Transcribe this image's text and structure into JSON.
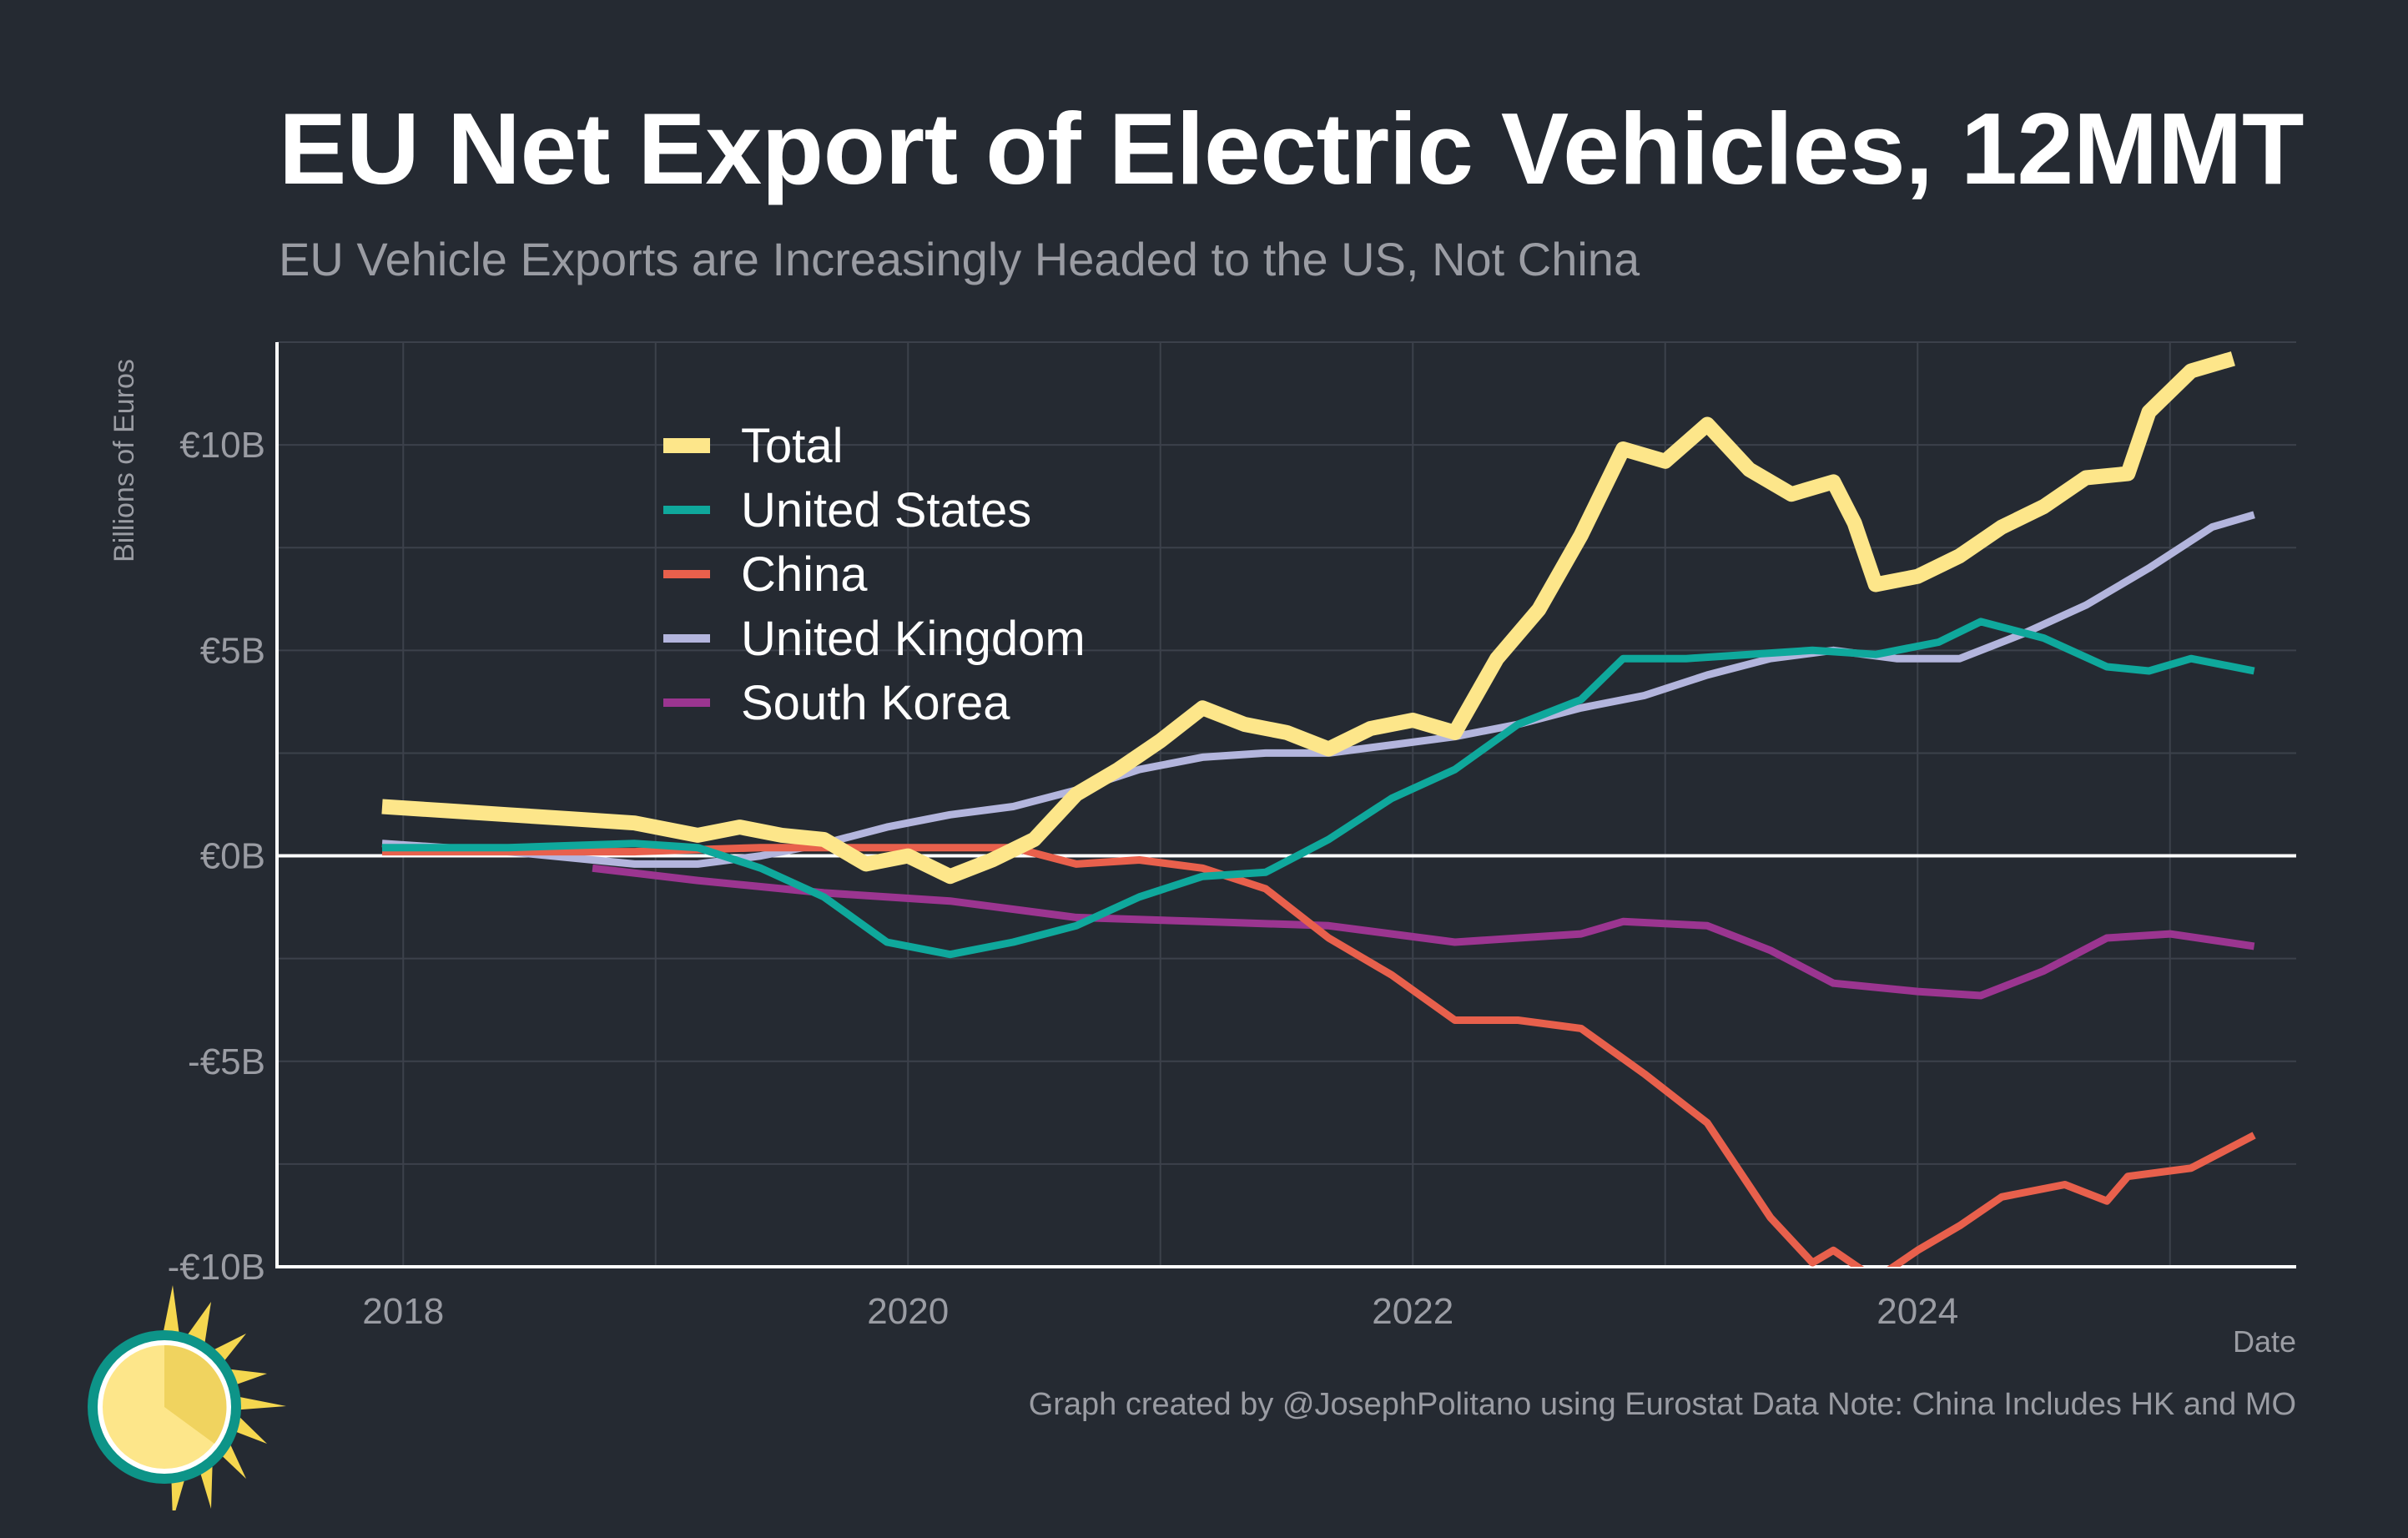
{
  "title": "EU Net Export of Electric Vehicles, 12MMT",
  "subtitle": "EU Vehicle Exports are Increasingly Headed to the US, Not China",
  "credit": "Graph created by @JosephPolitano using Eurostat Data  Note: China Includes HK and MO",
  "chart_data": {
    "type": "line",
    "xlabel": "Date",
    "ylabel": "Billions of Euros",
    "xlim": [
      "2017-07",
      "2025-07"
    ],
    "ylim": [
      -10,
      12.5
    ],
    "x_ticks": [
      "2018",
      "2020",
      "2022",
      "2024"
    ],
    "y_ticks": [
      {
        "value": 10,
        "label": "€10B"
      },
      {
        "value": 5,
        "label": "€5B"
      },
      {
        "value": 0,
        "label": "€0B"
      },
      {
        "value": -5,
        "label": "-€5B"
      },
      {
        "value": -10,
        "label": "-€10B"
      }
    ],
    "grid": true,
    "zero_line": true,
    "legend_position": "top-left",
    "series": [
      {
        "name": "Total",
        "color": "#fde68a",
        "width": 18,
        "points": [
          [
            "2017-12",
            1.2
          ],
          [
            "2018-03",
            1.1
          ],
          [
            "2018-06",
            1.0
          ],
          [
            "2018-09",
            0.9
          ],
          [
            "2018-12",
            0.8
          ],
          [
            "2019-03",
            0.5
          ],
          [
            "2019-05",
            0.7
          ],
          [
            "2019-07",
            0.5
          ],
          [
            "2019-09",
            0.4
          ],
          [
            "2019-11",
            -0.2
          ],
          [
            "2020-01",
            0.0
          ],
          [
            "2020-03",
            -0.5
          ],
          [
            "2020-05",
            -0.1
          ],
          [
            "2020-07",
            0.4
          ],
          [
            "2020-09",
            1.5
          ],
          [
            "2020-11",
            2.1
          ],
          [
            "2021-01",
            2.8
          ],
          [
            "2021-03",
            3.6
          ],
          [
            "2021-05",
            3.2
          ],
          [
            "2021-07",
            3.0
          ],
          [
            "2021-09",
            2.6
          ],
          [
            "2021-11",
            3.1
          ],
          [
            "2022-01",
            3.3
          ],
          [
            "2022-03",
            3.0
          ],
          [
            "2022-05",
            4.8
          ],
          [
            "2022-07",
            6.0
          ],
          [
            "2022-09",
            7.8
          ],
          [
            "2022-11",
            9.9
          ],
          [
            "2023-01",
            9.6
          ],
          [
            "2023-03",
            10.5
          ],
          [
            "2023-05",
            9.4
          ],
          [
            "2023-07",
            8.8
          ],
          [
            "2023-09",
            9.1
          ],
          [
            "2023-10",
            8.1
          ],
          [
            "2023-11",
            6.6
          ],
          [
            "2024-01",
            6.8
          ],
          [
            "2024-03",
            7.3
          ],
          [
            "2024-05",
            8.0
          ],
          [
            "2024-07",
            8.5
          ],
          [
            "2024-09",
            9.2
          ],
          [
            "2024-11",
            9.3
          ],
          [
            "2024-12",
            10.8
          ],
          [
            "2025-02",
            11.8
          ],
          [
            "2025-04",
            12.1
          ]
        ]
      },
      {
        "name": "United States",
        "color": "#0fa89c",
        "width": 9,
        "points": [
          [
            "2017-12",
            0.2
          ],
          [
            "2018-06",
            0.2
          ],
          [
            "2018-12",
            0.3
          ],
          [
            "2019-03",
            0.2
          ],
          [
            "2019-06",
            -0.3
          ],
          [
            "2019-09",
            -1.0
          ],
          [
            "2019-12",
            -2.1
          ],
          [
            "2020-03",
            -2.4
          ],
          [
            "2020-06",
            -2.1
          ],
          [
            "2020-09",
            -1.7
          ],
          [
            "2020-12",
            -1.0
          ],
          [
            "2021-03",
            -0.5
          ],
          [
            "2021-06",
            -0.4
          ],
          [
            "2021-09",
            0.4
          ],
          [
            "2021-12",
            1.4
          ],
          [
            "2022-03",
            2.1
          ],
          [
            "2022-06",
            3.2
          ],
          [
            "2022-09",
            3.8
          ],
          [
            "2022-11",
            4.8
          ],
          [
            "2023-02",
            4.8
          ],
          [
            "2023-05",
            4.9
          ],
          [
            "2023-08",
            5.0
          ],
          [
            "2023-11",
            4.9
          ],
          [
            "2024-02",
            5.2
          ],
          [
            "2024-04",
            5.7
          ],
          [
            "2024-07",
            5.3
          ],
          [
            "2024-10",
            4.6
          ],
          [
            "2024-12",
            4.5
          ],
          [
            "2025-02",
            4.8
          ],
          [
            "2025-05",
            4.5
          ]
        ]
      },
      {
        "name": "China",
        "color": "#e8604c",
        "width": 9,
        "points": [
          [
            "2017-12",
            0.1
          ],
          [
            "2018-06",
            0.1
          ],
          [
            "2018-12",
            0.1
          ],
          [
            "2019-06",
            0.2
          ],
          [
            "2019-12",
            0.2
          ],
          [
            "2020-06",
            0.2
          ],
          [
            "2020-09",
            -0.2
          ],
          [
            "2020-12",
            -0.1
          ],
          [
            "2021-03",
            -0.3
          ],
          [
            "2021-06",
            -0.8
          ],
          [
            "2021-09",
            -2.0
          ],
          [
            "2021-12",
            -2.9
          ],
          [
            "2022-03",
            -4.0
          ],
          [
            "2022-06",
            -4.0
          ],
          [
            "2022-09",
            -4.2
          ],
          [
            "2022-12",
            -5.3
          ],
          [
            "2023-03",
            -6.5
          ],
          [
            "2023-06",
            -8.8
          ],
          [
            "2023-08",
            -9.9
          ],
          [
            "2023-09",
            -9.6
          ],
          [
            "2023-11",
            -10.3
          ],
          [
            "2024-01",
            -9.6
          ],
          [
            "2024-03",
            -9.0
          ],
          [
            "2024-05",
            -8.3
          ],
          [
            "2024-08",
            -8.0
          ],
          [
            "2024-10",
            -8.4
          ],
          [
            "2024-11",
            -7.8
          ],
          [
            "2025-02",
            -7.6
          ],
          [
            "2025-05",
            -6.8
          ]
        ]
      },
      {
        "name": "United Kingdom",
        "color": "#b3b5dd",
        "width": 9,
        "points": [
          [
            "2017-12",
            0.3
          ],
          [
            "2018-06",
            0.1
          ],
          [
            "2018-12",
            -0.2
          ],
          [
            "2019-03",
            -0.2
          ],
          [
            "2019-06",
            0.0
          ],
          [
            "2019-09",
            0.3
          ],
          [
            "2019-12",
            0.7
          ],
          [
            "2020-03",
            1.0
          ],
          [
            "2020-06",
            1.2
          ],
          [
            "2020-09",
            1.6
          ],
          [
            "2020-12",
            2.1
          ],
          [
            "2021-03",
            2.4
          ],
          [
            "2021-06",
            2.5
          ],
          [
            "2021-09",
            2.5
          ],
          [
            "2021-12",
            2.7
          ],
          [
            "2022-03",
            2.9
          ],
          [
            "2022-06",
            3.2
          ],
          [
            "2022-09",
            3.6
          ],
          [
            "2022-12",
            3.9
          ],
          [
            "2023-03",
            4.4
          ],
          [
            "2023-06",
            4.8
          ],
          [
            "2023-09",
            5.0
          ],
          [
            "2023-12",
            4.8
          ],
          [
            "2024-03",
            4.8
          ],
          [
            "2024-06",
            5.4
          ],
          [
            "2024-09",
            6.1
          ],
          [
            "2024-12",
            7.0
          ],
          [
            "2025-03",
            8.0
          ],
          [
            "2025-05",
            8.3
          ]
        ]
      },
      {
        "name": "South Korea",
        "color": "#9b3590",
        "width": 9,
        "points": [
          [
            "2018-10",
            -0.3
          ],
          [
            "2019-03",
            -0.6
          ],
          [
            "2019-09",
            -0.9
          ],
          [
            "2020-03",
            -1.1
          ],
          [
            "2020-09",
            -1.5
          ],
          [
            "2021-03",
            -1.6
          ],
          [
            "2021-09",
            -1.7
          ],
          [
            "2022-03",
            -2.1
          ],
          [
            "2022-09",
            -1.9
          ],
          [
            "2022-11",
            -1.6
          ],
          [
            "2023-03",
            -1.7
          ],
          [
            "2023-06",
            -2.3
          ],
          [
            "2023-09",
            -3.1
          ],
          [
            "2024-01",
            -3.3
          ],
          [
            "2024-04",
            -3.4
          ],
          [
            "2024-07",
            -2.8
          ],
          [
            "2024-10",
            -2.0
          ],
          [
            "2025-01",
            -1.9
          ],
          [
            "2025-05",
            -2.2
          ]
        ]
      }
    ]
  }
}
